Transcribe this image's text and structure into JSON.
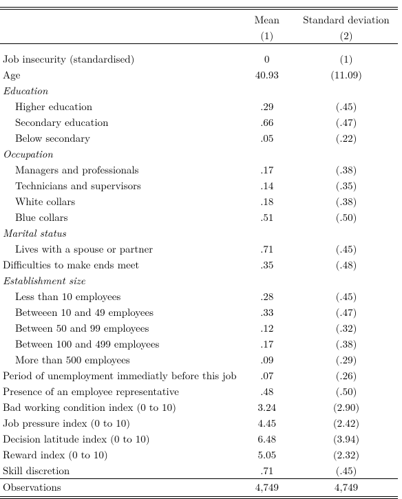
{
  "header": {
    "mean_label": "Mean",
    "sd_label": "Standard deviation",
    "mean_sub": "(1)",
    "sd_sub": "(2)"
  },
  "sections": [
    {
      "rows": [
        {
          "label": "Job insecurity (standardised)",
          "mean": "0",
          "sd": "(1)"
        },
        {
          "label": "Age",
          "mean": "40.93",
          "sd": "(11.09)"
        }
      ]
    },
    {
      "title": "Education",
      "rows": [
        {
          "label": "Higher education",
          "mean": ".29",
          "sd": "(.45)",
          "indent": true
        },
        {
          "label": "Secondary education",
          "mean": ".66",
          "sd": "(.47)",
          "indent": true
        },
        {
          "label": "Below secondary",
          "mean": ".05",
          "sd": "(.22)",
          "indent": true
        }
      ]
    },
    {
      "title": "Occupation",
      "rows": [
        {
          "label": "Managers and professionals",
          "mean": ".17",
          "sd": "(.38)",
          "indent": true
        },
        {
          "label": "Technicians and supervisors",
          "mean": ".14",
          "sd": "(.35)",
          "indent": true
        },
        {
          "label": "White collars",
          "mean": ".18",
          "sd": "(.38)",
          "indent": true
        },
        {
          "label": "Blue collars",
          "mean": ".51",
          "sd": "(.50)",
          "indent": true
        }
      ]
    },
    {
      "title": "Marital status",
      "rows": [
        {
          "label": "Lives with a spouse or partner",
          "mean": ".71",
          "sd": "(.45)",
          "indent": true
        }
      ]
    },
    {
      "rows": [
        {
          "label": "Difficulties to make ends meet",
          "mean": ".35",
          "sd": "(.48)"
        }
      ]
    },
    {
      "title": "Establishment size",
      "rows": [
        {
          "label": "Less than 10 employees",
          "mean": ".28",
          "sd": "(.45)",
          "indent": true
        },
        {
          "label": "Betweeen 10 and 49 employees",
          "mean": ".33",
          "sd": "(.47)",
          "indent": true
        },
        {
          "label": "Between 50 and 99 employees",
          "mean": ".12",
          "sd": "(.32)",
          "indent": true
        },
        {
          "label": "Between 100 and 499 employees",
          "mean": ".17",
          "sd": "(.38)",
          "indent": true
        },
        {
          "label": "More than 500 employees",
          "mean": ".09",
          "sd": "(.29)",
          "indent": true
        }
      ]
    },
    {
      "rows": [
        {
          "label": "Period of unemployment immediatly before this job",
          "mean": ".07",
          "sd": "(.26)"
        },
        {
          "label": "Presence of an employee representative",
          "mean": ".48",
          "sd": "(.50)"
        },
        {
          "label": "Bad working condition index (0 to 10)",
          "mean": "3.24",
          "sd": "(2.90)"
        },
        {
          "label": "Job pressure index (0 to 10)",
          "mean": "4.45",
          "sd": "(2.42)"
        },
        {
          "label": "Decision latitude index (0 to 10)",
          "mean": "6.48",
          "sd": "(3.94)"
        },
        {
          "label": "Reward index (0 to 10)",
          "mean": "5.05",
          "sd": "(2.32)"
        },
        {
          "label": "Skill discretion",
          "mean": ".71",
          "sd": "(.45)"
        }
      ]
    }
  ],
  "footer": {
    "label": "Observations",
    "mean": "4,749",
    "sd": "4,749"
  }
}
